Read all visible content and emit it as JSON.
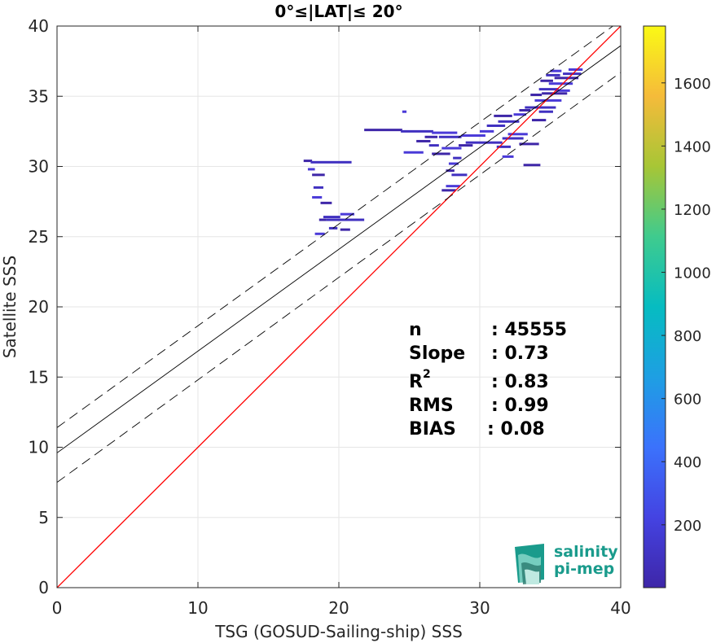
{
  "chart_data": {
    "type": "scatter",
    "title": "0°≤|LAT|≤ 20°",
    "xlabel": "TSG (GOSUD-Sailing-ship) SSS",
    "ylabel": "Satellite SSS",
    "xlim": [
      0,
      40
    ],
    "ylim": [
      0,
      40
    ],
    "xticks": [
      "0",
      "10",
      "20",
      "30",
      "40"
    ],
    "yticks": [
      "0",
      "5",
      "10",
      "15",
      "20",
      "25",
      "30",
      "35",
      "40"
    ],
    "grid": true,
    "lines": [
      {
        "name": "identity",
        "color": "#ff0000",
        "style": "solid",
        "x": [
          0,
          40
        ],
        "y": [
          0,
          40
        ]
      },
      {
        "name": "fit",
        "color": "#000000",
        "style": "solid",
        "x": [
          0,
          40
        ],
        "y": [
          9.6,
          38.6
        ]
      },
      {
        "name": "fit+",
        "color": "#000000",
        "style": "dashed",
        "x": [
          0,
          40
        ],
        "y": [
          11.4,
          40.4
        ]
      },
      {
        "name": "fit-",
        "color": "#000000",
        "style": "dashed",
        "x": [
          0,
          40
        ],
        "y": [
          7.5,
          36.7
        ]
      }
    ],
    "colorbar": {
      "ticks": [
        "200",
        "400",
        "600",
        "800",
        "1000",
        "1200",
        "1400",
        "1600"
      ],
      "tick_values": [
        200,
        400,
        600,
        800,
        1000,
        1200,
        1400,
        1600
      ],
      "range": [
        1,
        1780
      ],
      "colormap": [
        "#3e26a8",
        "#4443e2",
        "#3b72fc",
        "#1e9fe3",
        "#06bcc1",
        "#3fcb8e",
        "#a7c636",
        "#f5bb3a",
        "#faf915"
      ]
    },
    "density_points": [
      {
        "x": 17.5,
        "x2": 18.1,
        "y": 30.4
      },
      {
        "x": 18.0,
        "x2": 20.9,
        "y": 30.3
      },
      {
        "x": 17.8,
        "x2": 18.3,
        "y": 29.8
      },
      {
        "x": 18.1,
        "x2": 19.0,
        "y": 29.4
      },
      {
        "x": 18.2,
        "x2": 18.9,
        "y": 28.5
      },
      {
        "x": 18.1,
        "x2": 18.8,
        "y": 27.8
      },
      {
        "x": 18.7,
        "x2": 19.5,
        "y": 27.4
      },
      {
        "x": 18.9,
        "x2": 20.1,
        "y": 26.4
      },
      {
        "x": 20.1,
        "x2": 21.1,
        "y": 26.6
      },
      {
        "x": 18.6,
        "x2": 19.1,
        "y": 26.2
      },
      {
        "x": 19.1,
        "x2": 21.8,
        "y": 26.2
      },
      {
        "x": 18.3,
        "x2": 19.0,
        "y": 25.2
      },
      {
        "x": 20.1,
        "x2": 20.8,
        "y": 25.5
      },
      {
        "x": 19.3,
        "x2": 19.9,
        "y": 25.6
      },
      {
        "x": 24.5,
        "x2": 24.8,
        "y": 33.9
      },
      {
        "x": 21.8,
        "x2": 24.5,
        "y": 32.6
      },
      {
        "x": 24.4,
        "x2": 26.7,
        "y": 32.5
      },
      {
        "x": 26.6,
        "x2": 28.4,
        "y": 32.4
      },
      {
        "x": 26.1,
        "x2": 27.0,
        "y": 32.1
      },
      {
        "x": 27.1,
        "x2": 28.7,
        "y": 32.1
      },
      {
        "x": 28.7,
        "x2": 30.4,
        "y": 32.2
      },
      {
        "x": 25.5,
        "x2": 26.5,
        "y": 31.8
      },
      {
        "x": 26.4,
        "x2": 27.1,
        "y": 31.5
      },
      {
        "x": 27.3,
        "x2": 28.7,
        "y": 31.3
      },
      {
        "x": 28.5,
        "x2": 29.5,
        "y": 31.5
      },
      {
        "x": 29.0,
        "x2": 31.6,
        "y": 31.7
      },
      {
        "x": 24.6,
        "x2": 26.0,
        "y": 31.0
      },
      {
        "x": 26.6,
        "x2": 27.9,
        "y": 30.9
      },
      {
        "x": 28.1,
        "x2": 28.7,
        "y": 30.6
      },
      {
        "x": 27.8,
        "x2": 28.5,
        "y": 30.2
      },
      {
        "x": 27.6,
        "x2": 28.2,
        "y": 29.7
      },
      {
        "x": 28.0,
        "x2": 29.1,
        "y": 29.4
      },
      {
        "x": 27.6,
        "x2": 28.6,
        "y": 28.6
      },
      {
        "x": 27.3,
        "x2": 28.3,
        "y": 28.3
      },
      {
        "x": 30.5,
        "x2": 31.8,
        "y": 32.9
      },
      {
        "x": 30.0,
        "x2": 31.0,
        "y": 32.5
      },
      {
        "x": 31.0,
        "x2": 32.3,
        "y": 33.6
      },
      {
        "x": 31.3,
        "x2": 32.8,
        "y": 33.2
      },
      {
        "x": 32.0,
        "x2": 33.4,
        "y": 32.3
      },
      {
        "x": 32.8,
        "x2": 34.2,
        "y": 31.6
      },
      {
        "x": 31.2,
        "x2": 32.2,
        "y": 31.4
      },
      {
        "x": 31.6,
        "x2": 32.4,
        "y": 30.7
      },
      {
        "x": 33.1,
        "x2": 34.3,
        "y": 30.1
      },
      {
        "x": 31.6,
        "x2": 33.1,
        "y": 32.0
      },
      {
        "x": 32.4,
        "x2": 33.3,
        "y": 33.7
      },
      {
        "x": 32.8,
        "x2": 33.6,
        "y": 34.0
      },
      {
        "x": 33.2,
        "x2": 35.4,
        "y": 34.2
      },
      {
        "x": 33.9,
        "x2": 35.8,
        "y": 34.7
      },
      {
        "x": 34.4,
        "x2": 36.2,
        "y": 35.2
      },
      {
        "x": 34.2,
        "x2": 35.6,
        "y": 35.5
      },
      {
        "x": 34.9,
        "x2": 36.6,
        "y": 35.9
      },
      {
        "x": 35.3,
        "x2": 37.0,
        "y": 36.3
      },
      {
        "x": 35.9,
        "x2": 37.2,
        "y": 36.6
      },
      {
        "x": 36.3,
        "x2": 37.3,
        "y": 36.9
      },
      {
        "x": 34.3,
        "x2": 35.2,
        "y": 36.1
      },
      {
        "x": 34.7,
        "x2": 35.7,
        "y": 36.5
      },
      {
        "x": 35.0,
        "x2": 35.8,
        "y": 36.8
      },
      {
        "x": 33.6,
        "x2": 34.4,
        "y": 35.1
      },
      {
        "x": 34.2,
        "x2": 35.2,
        "y": 33.9
      },
      {
        "x": 35.4,
        "x2": 36.4,
        "y": 35.4
      },
      {
        "x": 33.7,
        "x2": 34.7,
        "y": 33.3
      }
    ]
  },
  "stats": {
    "n_label": "n",
    "n_value": ": 45555",
    "slope_label": "Slope",
    "slope_value": ": 0.73",
    "r2_label": "R",
    "r2_sup": "2",
    "r2_value": ": 0.83",
    "rms_label": "RMS",
    "rms_value": ": 0.99",
    "bias_label": "BIAS",
    "bias_value": ": 0.08"
  },
  "logo": {
    "line1": "salinity",
    "line2": "pi-mep",
    "colors": [
      "#1a9b8c",
      "#7fd3c4",
      "#2f7f73"
    ]
  }
}
